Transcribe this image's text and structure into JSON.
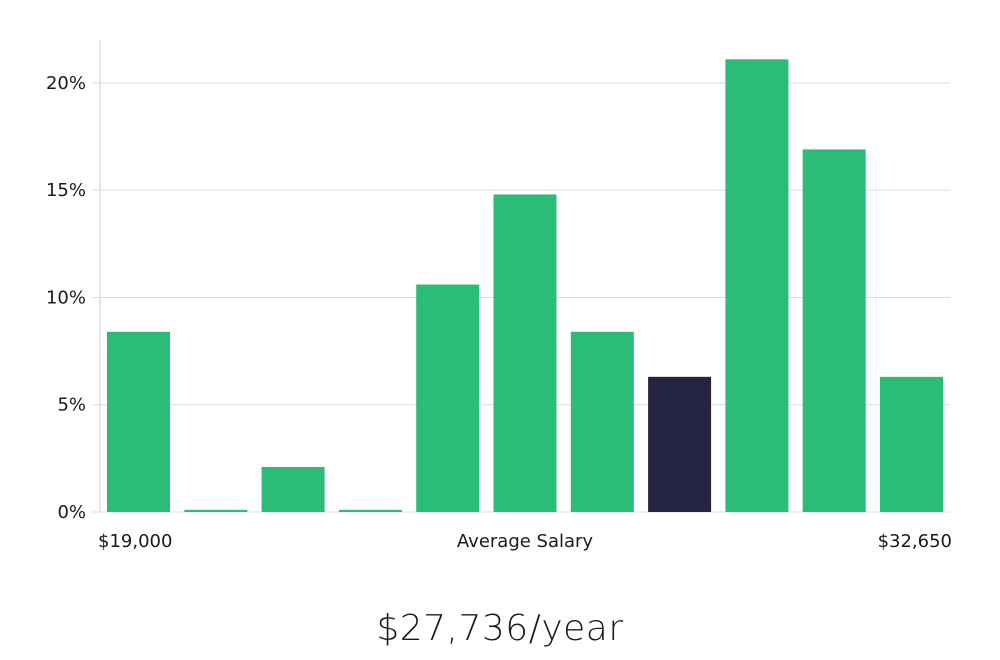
{
  "chart_data": {
    "type": "bar",
    "title": "",
    "xlabel": "Average Salary",
    "ylabel": "",
    "x_min_label": "$19,000",
    "x_max_label": "$32,650",
    "ylim": [
      0,
      22
    ],
    "yticks": [
      0,
      5,
      10,
      15,
      20
    ],
    "ytick_labels": [
      "0%",
      "5%",
      "10%",
      "15%",
      "20%"
    ],
    "grid": true,
    "values": [
      8.4,
      0.1,
      2.1,
      0.1,
      10.6,
      14.8,
      8.4,
      6.3,
      21.1,
      16.9,
      6.3
    ],
    "highlight_index": 7,
    "colors": {
      "bar": "#2bbd77",
      "highlight": "#262443",
      "grid": "#dcdcdc",
      "axis": "#cccccc"
    }
  },
  "summary": {
    "salary": "$27,736/year"
  }
}
